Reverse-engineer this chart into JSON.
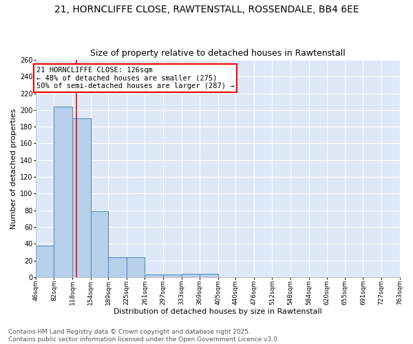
{
  "title": "21, HORNCLIFFE CLOSE, RAWTENSTALL, ROSSENDALE, BB4 6EE",
  "subtitle": "Size of property relative to detached houses in Rawtenstall",
  "xlabel": "Distribution of detached houses by size in Rawtenstall",
  "ylabel": "Number of detached properties",
  "bar_values": [
    38,
    204,
    190,
    79,
    24,
    24,
    3,
    3,
    4,
    4,
    0,
    0,
    0,
    0,
    0,
    0,
    0,
    0,
    0,
    0
  ],
  "bin_edges": [
    46,
    82,
    118,
    154,
    189,
    225,
    261,
    297,
    333,
    369,
    405,
    440,
    476,
    512,
    548,
    584,
    620,
    655,
    691,
    727,
    763
  ],
  "tick_labels": [
    "46sqm",
    "82sqm",
    "118sqm",
    "154sqm",
    "189sqm",
    "225sqm",
    "261sqm",
    "297sqm",
    "333sqm",
    "369sqm",
    "405sqm",
    "440sqm",
    "476sqm",
    "512sqm",
    "548sqm",
    "584sqm",
    "620sqm",
    "655sqm",
    "691sqm",
    "727sqm",
    "763sqm"
  ],
  "bar_color": "#b8d0ea",
  "bar_edge_color": "#5a8fc0",
  "property_line_x": 126,
  "property_line_color": "red",
  "annotation_line1": "21 HORNCLIFFE CLOSE: 126sqm",
  "annotation_line2": "← 48% of detached houses are smaller (275)",
  "annotation_line3": "50% of semi-detached houses are larger (287) →",
  "ylim": [
    0,
    260
  ],
  "yticks": [
    0,
    20,
    40,
    60,
    80,
    100,
    120,
    140,
    160,
    180,
    200,
    220,
    240,
    260
  ],
  "background_color": "#dde8f8",
  "grid_color": "white",
  "footer_line1": "Contains HM Land Registry data © Crown copyright and database right 2025.",
  "footer_line2": "Contains public sector information licensed under the Open Government Licence v3.0.",
  "title_fontsize": 10,
  "subtitle_fontsize": 9,
  "axis_label_fontsize": 8,
  "tick_fontsize": 6.5,
  "annotation_fontsize": 7.5,
  "footer_fontsize": 6.5
}
